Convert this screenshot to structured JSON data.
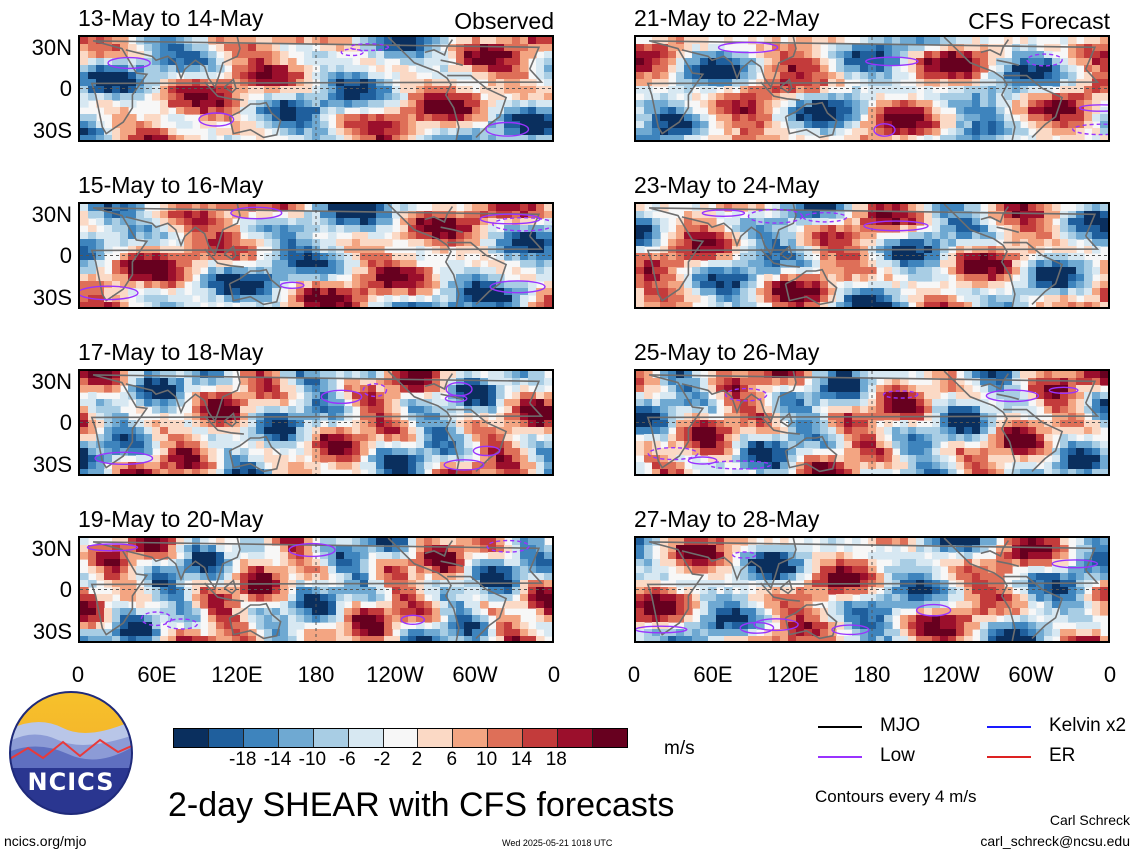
{
  "panels": [
    {
      "title": "13-May to 14-May",
      "tag": "Observed",
      "seed": 11
    },
    {
      "title": "15-May to 16-May",
      "tag": "",
      "seed": 23
    },
    {
      "title": "17-May to 18-May",
      "tag": "",
      "seed": 37
    },
    {
      "title": "19-May to 20-May",
      "tag": "",
      "seed": 41
    },
    {
      "title": "21-May to 22-May",
      "tag": "CFS Forecast",
      "seed": 53
    },
    {
      "title": "23-May to 24-May",
      "tag": "",
      "seed": 67
    },
    {
      "title": "25-May to 26-May",
      "tag": "",
      "seed": 71
    },
    {
      "title": "27-May to 28-May",
      "tag": "",
      "seed": 89
    }
  ],
  "axes": {
    "lat_labels": [
      "30N",
      "0",
      "30S"
    ],
    "lon_labels": [
      "0",
      "60E",
      "120E",
      "180",
      "120W",
      "60W",
      "0"
    ]
  },
  "colorbar": {
    "colors": [
      "#0a2f5e",
      "#1f5f9d",
      "#3e84bd",
      "#6fa9d2",
      "#a8cde4",
      "#d7e8f2",
      "#f7f7f7",
      "#fbd9c5",
      "#f3a582",
      "#de6f58",
      "#c33b3b",
      "#9b0f2c",
      "#67001f"
    ],
    "tick_labels": [
      "-18",
      "-14",
      "-10",
      "-6",
      "-2",
      "2",
      "6",
      "10",
      "14",
      "18"
    ],
    "units": "m/s"
  },
  "legend": [
    {
      "label": "MJO",
      "color": "#000000"
    },
    {
      "label": "Kelvin x2",
      "color": "#1a1aff"
    },
    {
      "label": "Low",
      "color": "#9933ff"
    },
    {
      "label": "ER",
      "color": "#dd2222"
    }
  ],
  "logo": {
    "text": "NCICS"
  },
  "main_title": "2-day SHEAR with CFS forecasts",
  "contour_note": "Contours every 4 m/s",
  "author": "Carl Schreck",
  "email": "carl_schreck@ncsu.edu",
  "site": "ncics.org/mjo",
  "timestamp": "Wed 2025-05-21 1018 UTC"
}
